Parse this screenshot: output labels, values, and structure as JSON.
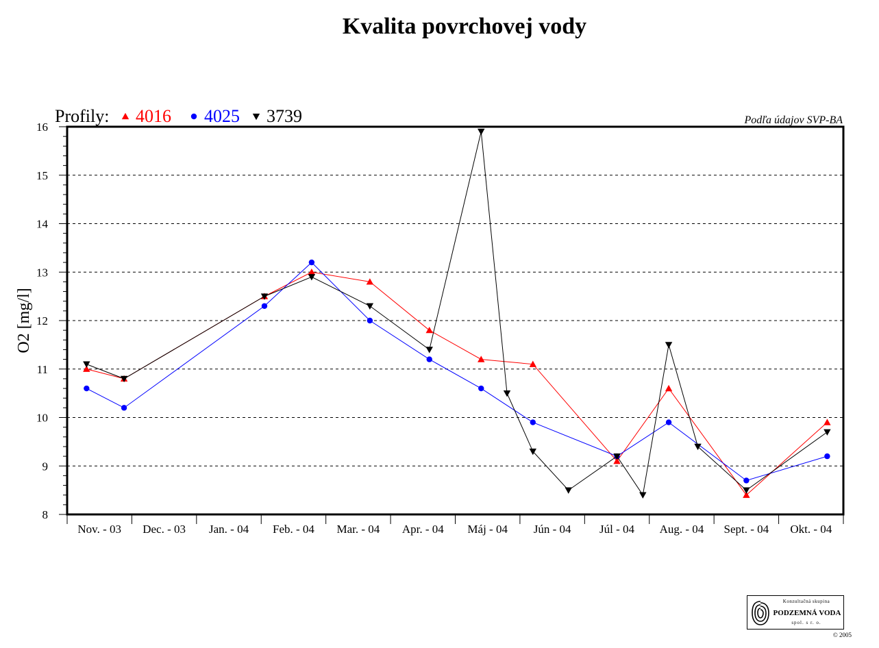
{
  "chart_data": {
    "type": "line",
    "title": "Kvalita povrchovej vody",
    "legend_label": "Profily:",
    "legend_position": "top-left",
    "source_note": "Podľa údajov SVP-BA",
    "ylabel": "O2 [mg/l]",
    "xlabel": "",
    "ylim": [
      8,
      16
    ],
    "yticks": [
      8,
      9,
      10,
      11,
      12,
      13,
      14,
      15,
      16
    ],
    "grid": "horizontal dashed",
    "x_range": [
      0,
      12
    ],
    "categories": [
      "Nov. - 03",
      "Dec. - 03",
      "Jan. - 04",
      "Feb. - 04",
      "Mar. - 04",
      "Apr. - 04",
      "Máj - 04",
      "Jún - 04",
      "Júl - 04",
      "Aug. - 04",
      "Sept. - 04",
      "Okt. - 04"
    ],
    "series": [
      {
        "name": "4016",
        "color": "#ff0000",
        "marker": "triangle-up",
        "points": [
          [
            0.3,
            11.0
          ],
          [
            0.88,
            10.8
          ],
          [
            3.05,
            12.5
          ],
          [
            3.78,
            13.0
          ],
          [
            4.68,
            12.8
          ],
          [
            5.6,
            11.8
          ],
          [
            6.4,
            11.2
          ],
          [
            7.2,
            11.1
          ],
          [
            8.5,
            9.1
          ],
          [
            9.3,
            10.6
          ],
          [
            10.5,
            8.4
          ],
          [
            11.75,
            9.9
          ]
        ]
      },
      {
        "name": "4025",
        "color": "#0000ff",
        "marker": "circle",
        "points": [
          [
            0.3,
            10.6
          ],
          [
            0.88,
            10.2
          ],
          [
            3.05,
            12.3
          ],
          [
            3.78,
            13.2
          ],
          [
            4.68,
            12.0
          ],
          [
            5.6,
            11.2
          ],
          [
            6.4,
            10.6
          ],
          [
            7.2,
            9.9
          ],
          [
            8.5,
            9.2
          ],
          [
            9.3,
            9.9
          ],
          [
            10.5,
            8.7
          ],
          [
            11.75,
            9.2
          ]
        ]
      },
      {
        "name": "3739",
        "color": "#000000",
        "marker": "triangle-down",
        "points": [
          [
            0.3,
            11.1
          ],
          [
            0.88,
            10.8
          ],
          [
            3.05,
            12.5
          ],
          [
            3.78,
            12.9
          ],
          [
            4.68,
            12.3
          ],
          [
            5.6,
            11.4
          ],
          [
            6.4,
            15.9
          ],
          [
            6.8,
            10.5
          ],
          [
            7.2,
            9.3
          ],
          [
            7.75,
            8.5
          ],
          [
            8.5,
            9.2
          ],
          [
            8.9,
            8.4
          ],
          [
            9.3,
            11.5
          ],
          [
            9.75,
            9.4
          ],
          [
            10.5,
            8.5
          ],
          [
            11.75,
            9.7
          ]
        ]
      }
    ]
  },
  "logo": {
    "top_text": "Konzultačná skupina",
    "name": "PODZEMNÁ VODA",
    "sub_text": "spol. s r. o.",
    "copyright": "© 2005"
  }
}
